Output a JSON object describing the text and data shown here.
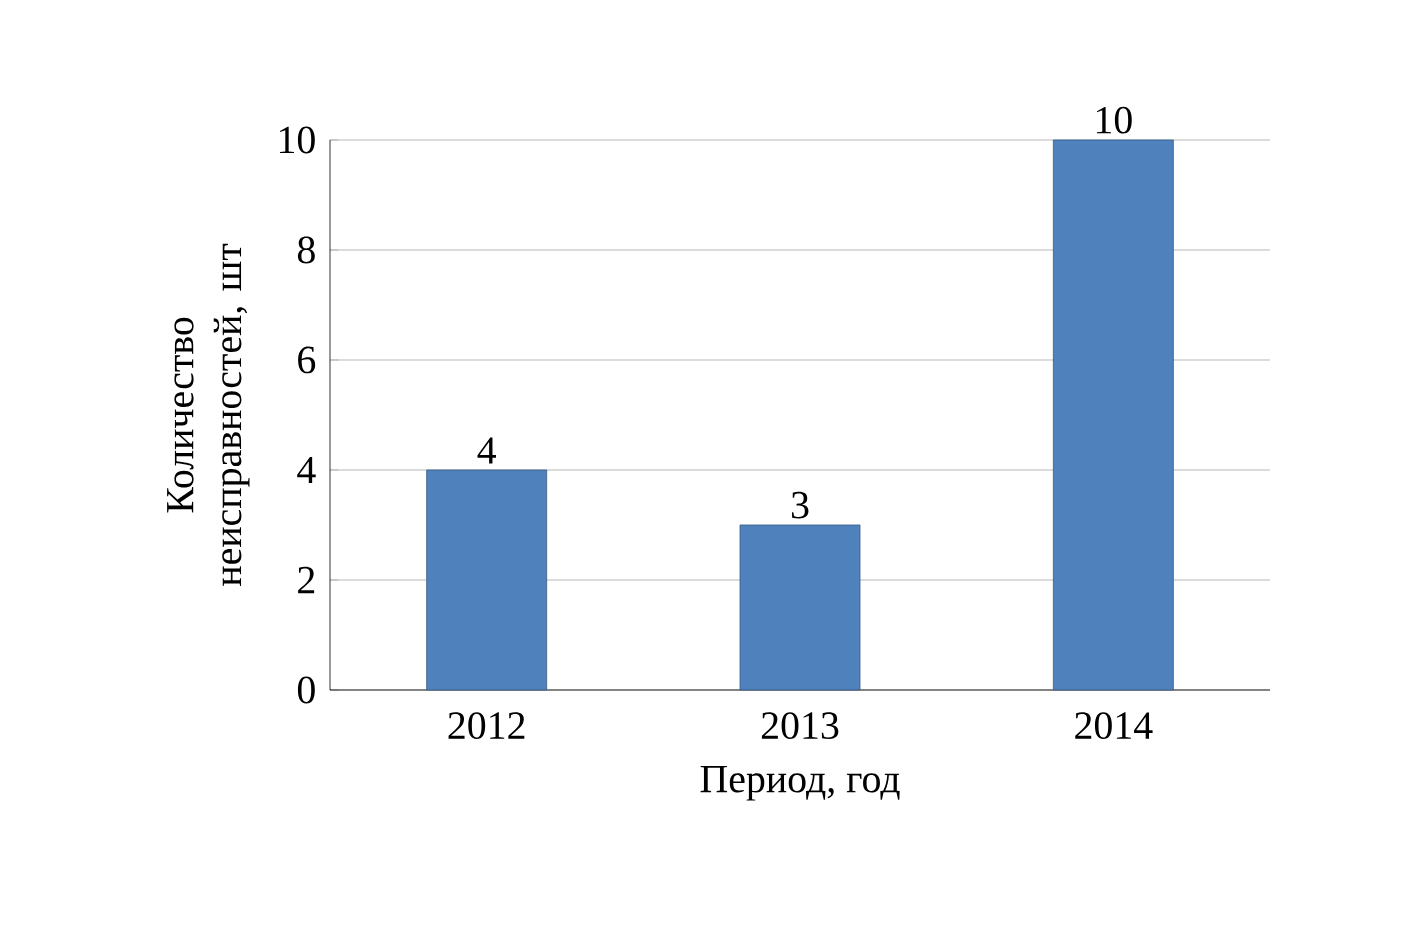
{
  "chart_data": {
    "type": "bar",
    "xlabel": "Период, год",
    "ylabel": "Количество неисправностей, шт",
    "categories": [
      "2012",
      "2013",
      "2014"
    ],
    "values": [
      4,
      3,
      10
    ],
    "color": "#4f81bd",
    "ylim": [
      0,
      10
    ],
    "yticks": [
      0,
      2,
      4,
      6,
      8,
      10
    ],
    "grid": "y",
    "data_labels": true
  }
}
